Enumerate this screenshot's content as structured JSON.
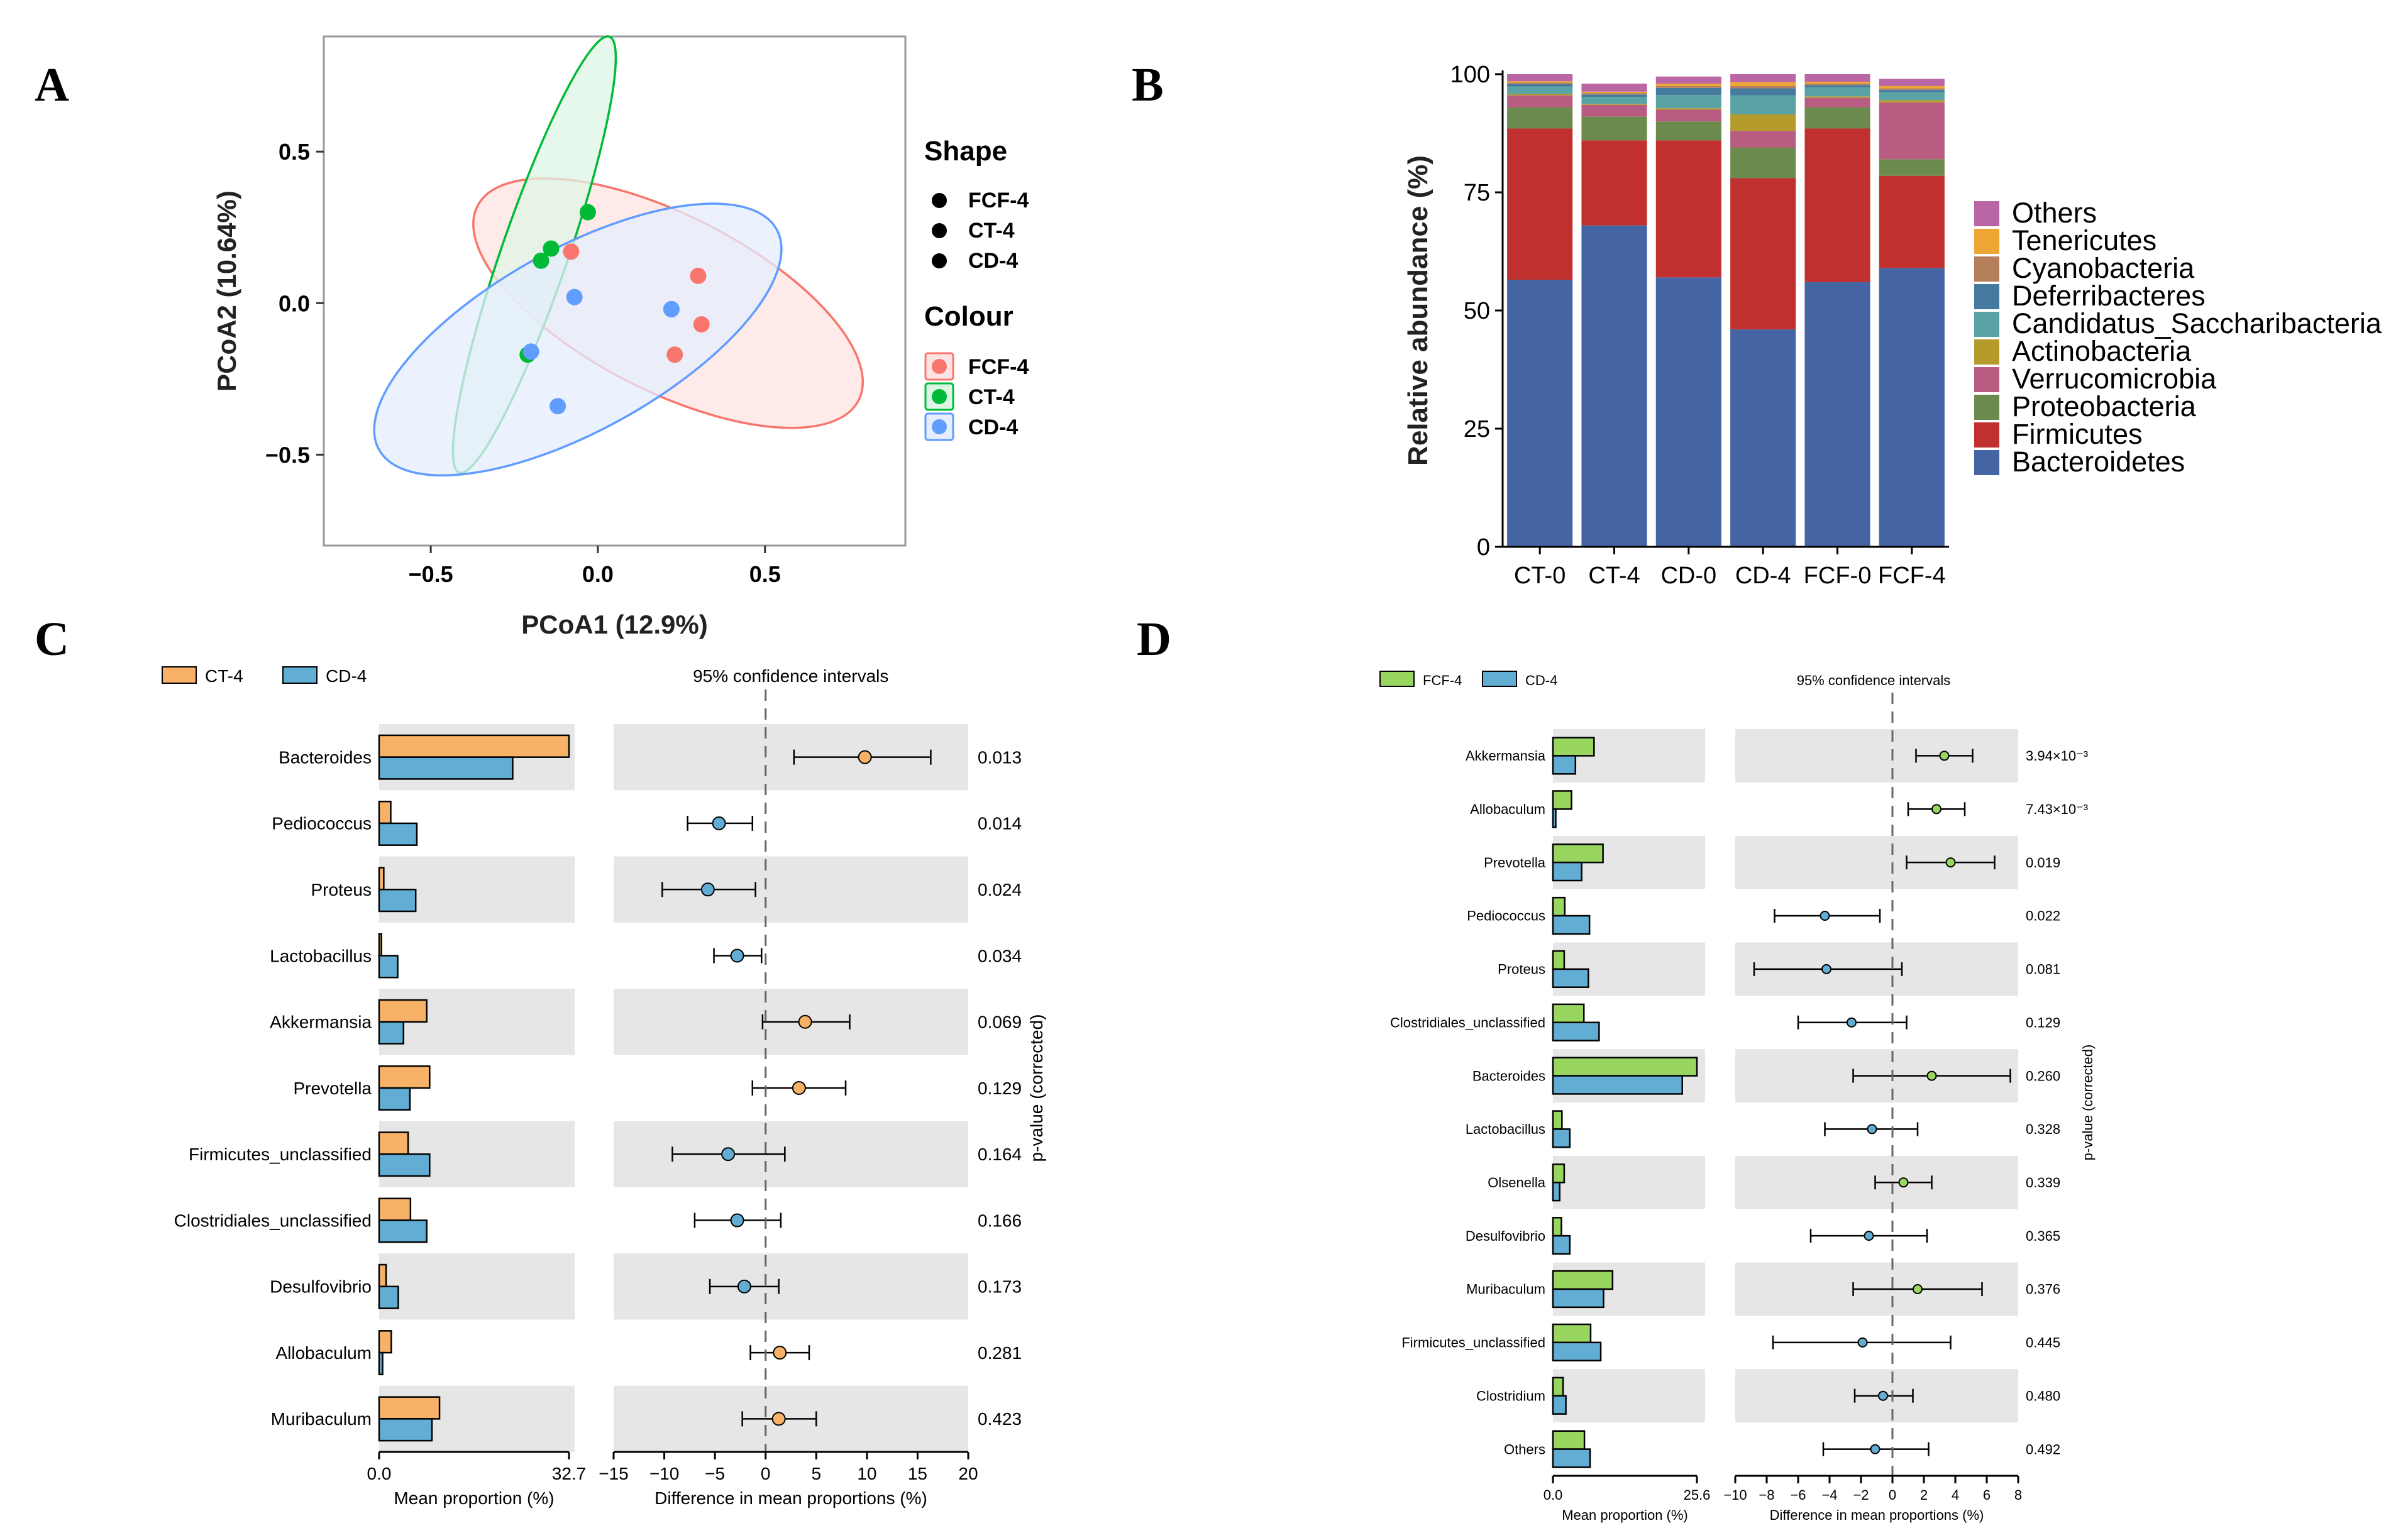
{
  "panels": {
    "A": "A",
    "B": "B",
    "C": "C",
    "D": "D"
  },
  "chart_data": [
    {
      "panel": "A",
      "type": "scatter",
      "xlabel": "PCoA1 (12.9%)",
      "ylabel": "PCoA2 (10.64%)",
      "xlim": [
        -0.82,
        0.92
      ],
      "ylim": [
        -0.8,
        0.88
      ],
      "xticks": [
        "−0.5",
        "0.0",
        "0.5"
      ],
      "xtick_values": [
        -0.5,
        0.0,
        0.5
      ],
      "yticks": [
        "0.5",
        "0.0",
        "−0.5"
      ],
      "ytick_values": [
        0.5,
        0.0,
        -0.5
      ],
      "legend_shape_title": "Shape",
      "legend_colour_title": "Colour",
      "groups": [
        {
          "name": "FCF-4",
          "color": "#F8766D",
          "fill": "#FDE4E2",
          "points": [
            [
              -0.08,
              0.17
            ],
            [
              0.3,
              0.09
            ],
            [
              0.22,
              -0.02
            ],
            [
              0.31,
              -0.07
            ],
            [
              0.23,
              -0.17
            ]
          ],
          "ellipse": {
            "cx": 0.21,
            "cy": 0.0,
            "rx": 0.64,
            "ry": 0.29,
            "angle_deg": -27
          }
        },
        {
          "name": "CT-4",
          "color": "#00BA38",
          "fill": "#DDF5E4",
          "points": [
            [
              -0.03,
              0.3
            ],
            [
              -0.14,
              0.18
            ],
            [
              -0.17,
              0.14
            ],
            [
              -0.21,
              -0.17
            ]
          ],
          "ellipse": {
            "cx": -0.19,
            "cy": 0.16,
            "rx": 0.69,
            "ry": 0.11,
            "angle_deg": 71
          }
        },
        {
          "name": "CD-4",
          "color": "#619CFF",
          "fill": "#E4EEFD",
          "points": [
            [
              -0.07,
              0.02
            ],
            [
              0.22,
              -0.02
            ],
            [
              -0.2,
              -0.16
            ],
            [
              -0.12,
              -0.34
            ]
          ],
          "ellipse": {
            "cx": -0.06,
            "cy": -0.12,
            "rx": 0.68,
            "ry": 0.3,
            "angle_deg": 29
          }
        }
      ]
    },
    {
      "panel": "B",
      "type": "bar",
      "stacked": true,
      "ylabel": "Relative abundance (%)",
      "ylim": [
        0,
        100
      ],
      "yticks": [
        0,
        25,
        50,
        75,
        100
      ],
      "categories": [
        "CT-0",
        "CT-4",
        "CD-0",
        "CD-4",
        "FCF-0",
        "FCF-4"
      ],
      "legend_order": [
        "Others",
        "Tenericutes",
        "Cyanobacteria",
        "Deferribacteres",
        "Candidatus_Saccharibacteria",
        "Actinobacteria",
        "Verrucomicrobia",
        "Proteobacteria",
        "Firmicutes",
        "Bacteroidetes"
      ],
      "series": [
        {
          "name": "Bacteroidetes",
          "color": "#4564A3",
          "values": [
            56.5,
            68,
            57,
            46,
            56,
            59
          ]
        },
        {
          "name": "Firmicutes",
          "color": "#BF302E",
          "values": [
            32,
            18,
            29,
            32,
            32.5,
            19.5
          ]
        },
        {
          "name": "Proteobacteria",
          "color": "#6A8B4D",
          "values": [
            4.5,
            5,
            4,
            6.5,
            4.5,
            3.5
          ]
        },
        {
          "name": "Verrucomicrobia",
          "color": "#B95C82",
          "values": [
            2.5,
            2.5,
            2.5,
            3.5,
            2,
            12
          ]
        },
        {
          "name": "Actinobacteria",
          "color": "#B59A2C",
          "values": [
            0.3,
            0.2,
            0.3,
            3.5,
            0.3,
            0.5
          ]
        },
        {
          "name": "Candidatus_Saccharibacteria",
          "color": "#5AA3A5",
          "values": [
            1.6,
            1.5,
            2.8,
            4.0,
            1.9,
            1.7
          ]
        },
        {
          "name": "Deferribacteres",
          "color": "#447A9E",
          "values": [
            0.5,
            0.5,
            1.5,
            1.5,
            0.5,
            0.5
          ]
        },
        {
          "name": "Cyanobacteria",
          "color": "#B47E5B",
          "values": [
            0.3,
            0.3,
            0.4,
            0.5,
            0.3,
            0.3
          ]
        },
        {
          "name": "Tenericutes",
          "color": "#EDA534",
          "values": [
            0.3,
            0.3,
            0.5,
            0.8,
            0.4,
            0.5
          ]
        },
        {
          "name": "Others",
          "color": "#BA66A4",
          "values": [
            1.5,
            1.7,
            1.5,
            1.7,
            1.6,
            1.5
          ]
        }
      ]
    },
    {
      "panel": "C",
      "type": "bar",
      "subtype": "extended_error_bar",
      "groups": [
        {
          "name": "CT-4",
          "color": "#F7B267"
        },
        {
          "name": "CD-4",
          "color": "#62ADD3"
        }
      ],
      "ci_title": "95% confidence intervals",
      "pvalue_label": "p-value (corrected)",
      "bar_xlabel": "Mean proportion (%)",
      "bar_xlim": [
        0,
        32.7
      ],
      "bar_xtick_labels": [
        "0.0",
        "32.7"
      ],
      "diff_xlabel": "Difference in mean proportions (%)",
      "diff_xlim": [
        -15,
        20
      ],
      "diff_xticks": [
        -15,
        -10,
        -5,
        0,
        5,
        10,
        15,
        20
      ],
      "diff_xtick_labels": [
        "−15",
        "−10",
        "−5",
        "0",
        "5",
        "10",
        "15",
        "20"
      ],
      "features": [
        {
          "name": "Bacteroides",
          "g1": 32.7,
          "g2": 23.0,
          "diff": 9.8,
          "lo": 2.8,
          "hi": 16.3,
          "p": "0.013"
        },
        {
          "name": "Pediococcus",
          "g1": 2.0,
          "g2": 6.5,
          "diff": -4.6,
          "lo": -7.7,
          "hi": -1.3,
          "p": "0.014"
        },
        {
          "name": "Proteus",
          "g1": 0.8,
          "g2": 6.3,
          "diff": -5.7,
          "lo": -10.2,
          "hi": -1.0,
          "p": "0.024"
        },
        {
          "name": "Lactobacillus",
          "g1": 0.4,
          "g2": 3.2,
          "diff": -2.8,
          "lo": -5.1,
          "hi": -0.4,
          "p": "0.034"
        },
        {
          "name": "Akkermansia",
          "g1": 8.2,
          "g2": 4.2,
          "diff": 3.9,
          "lo": -0.3,
          "hi": 8.3,
          "p": "0.069"
        },
        {
          "name": "Prevotella",
          "g1": 8.7,
          "g2": 5.3,
          "diff": 3.3,
          "lo": -1.3,
          "hi": 7.9,
          "p": "0.129"
        },
        {
          "name": "Firmicutes_unclassified",
          "g1": 5.0,
          "g2": 8.7,
          "diff": -3.7,
          "lo": -9.2,
          "hi": 1.9,
          "p": "0.164"
        },
        {
          "name": "Clostridiales_unclassified",
          "g1": 5.4,
          "g2": 8.2,
          "diff": -2.8,
          "lo": -7.0,
          "hi": 1.5,
          "p": "0.166"
        },
        {
          "name": "Desulfovibrio",
          "g1": 1.2,
          "g2": 3.3,
          "diff": -2.1,
          "lo": -5.5,
          "hi": 1.3,
          "p": "0.173"
        },
        {
          "name": "Allobaculum",
          "g1": 2.1,
          "g2": 0.6,
          "diff": 1.4,
          "lo": -1.5,
          "hi": 4.3,
          "p": "0.281"
        },
        {
          "name": "Muribaculum",
          "g1": 10.4,
          "g2": 9.1,
          "diff": 1.3,
          "lo": -2.3,
          "hi": 5.0,
          "p": "0.423"
        }
      ]
    },
    {
      "panel": "D",
      "type": "bar",
      "subtype": "extended_error_bar",
      "groups": [
        {
          "name": "FCF-4",
          "color": "#99D660"
        },
        {
          "name": "CD-4",
          "color": "#62ADD3"
        }
      ],
      "ci_title": "95% confidence intervals",
      "pvalue_label": "p-value (corrected)",
      "bar_xlabel": "Mean proportion (%)",
      "bar_xlim": [
        0,
        25.6
      ],
      "bar_xtick_labels": [
        "0.0",
        "25.6"
      ],
      "diff_xlabel": "Difference in mean proportions (%)",
      "diff_xlim": [
        -10,
        8
      ],
      "diff_xticks": [
        -10,
        -8,
        -6,
        -4,
        -2,
        0,
        2,
        4,
        6,
        8
      ],
      "diff_xtick_labels": [
        "−10",
        "−8",
        "−6",
        "−4",
        "−2",
        "0",
        "2",
        "4",
        "6",
        "8"
      ],
      "features": [
        {
          "name": "Akkermansia",
          "g1": 7.3,
          "g2": 4.0,
          "diff": 3.3,
          "lo": 1.5,
          "hi": 5.1,
          "p": "3.94×10⁻³"
        },
        {
          "name": "Allobaculum",
          "g1": 3.3,
          "g2": 0.5,
          "diff": 2.8,
          "lo": 1.0,
          "hi": 4.6,
          "p": "7.43×10⁻³"
        },
        {
          "name": "Prevotella",
          "g1": 8.9,
          "g2": 5.1,
          "diff": 3.7,
          "lo": 0.9,
          "hi": 6.5,
          "p": "0.019"
        },
        {
          "name": "Pediococcus",
          "g1": 2.1,
          "g2": 6.5,
          "diff": -4.3,
          "lo": -7.5,
          "hi": -0.8,
          "p": "0.022"
        },
        {
          "name": "Proteus",
          "g1": 2.0,
          "g2": 6.3,
          "diff": -4.2,
          "lo": -8.8,
          "hi": 0.6,
          "p": "0.081"
        },
        {
          "name": "Clostridiales_unclassified",
          "g1": 5.5,
          "g2": 8.2,
          "diff": -2.6,
          "lo": -6.0,
          "hi": 0.9,
          "p": "0.129"
        },
        {
          "name": "Bacteroides",
          "g1": 25.6,
          "g2": 23.0,
          "diff": 2.5,
          "lo": -2.5,
          "hi": 7.5,
          "p": "0.260"
        },
        {
          "name": "Lactobacillus",
          "g1": 1.6,
          "g2": 3.0,
          "diff": -1.3,
          "lo": -4.3,
          "hi": 1.6,
          "p": "0.328"
        },
        {
          "name": "Olsenella",
          "g1": 2.0,
          "g2": 1.2,
          "diff": 0.7,
          "lo": -1.1,
          "hi": 2.5,
          "p": "0.339"
        },
        {
          "name": "Desulfovibrio",
          "g1": 1.5,
          "g2": 3.0,
          "diff": -1.5,
          "lo": -5.2,
          "hi": 2.2,
          "p": "0.365"
        },
        {
          "name": "Muribaculum",
          "g1": 10.6,
          "g2": 9.0,
          "diff": 1.6,
          "lo": -2.5,
          "hi": 5.7,
          "p": "0.376"
        },
        {
          "name": "Firmicutes_unclassified",
          "g1": 6.7,
          "g2": 8.5,
          "diff": -1.9,
          "lo": -7.6,
          "hi": 3.7,
          "p": "0.445"
        },
        {
          "name": "Clostridium",
          "g1": 1.8,
          "g2": 2.3,
          "diff": -0.6,
          "lo": -2.4,
          "hi": 1.3,
          "p": "0.480"
        },
        {
          "name": "Others",
          "g1": 5.6,
          "g2": 6.6,
          "diff": -1.1,
          "lo": -4.4,
          "hi": 2.3,
          "p": "0.492"
        }
      ]
    }
  ]
}
